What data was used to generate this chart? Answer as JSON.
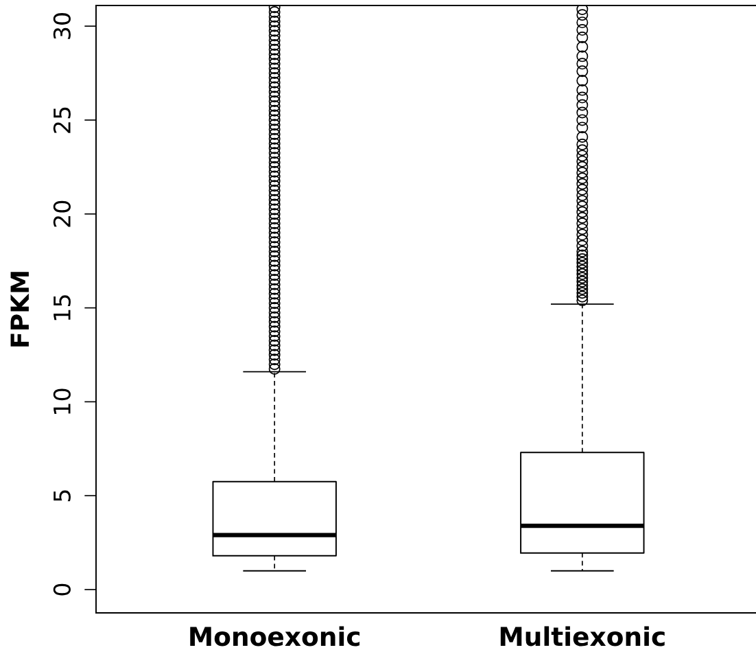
{
  "chart_data": {
    "type": "box",
    "ylabel": "FPKM",
    "categories": [
      "Monoexonic",
      "Multiexonic"
    ],
    "ylim": [
      -1.24,
      31.1
    ],
    "yticks": [
      0,
      5,
      10,
      15,
      20,
      25,
      30
    ],
    "grid": false,
    "marker": "circle",
    "boxes": [
      {
        "low": 1.0,
        "q1": 1.8,
        "median": 2.9,
        "q3": 5.75,
        "high": 11.6,
        "outliers": [
          11.75,
          12.0,
          12.25,
          12.5,
          12.75,
          13.0,
          13.25,
          13.5,
          13.75,
          14.0,
          14.25,
          14.5,
          14.75,
          15.0,
          15.25,
          15.5,
          15.75,
          16.0,
          16.25,
          16.5,
          16.75,
          17.0,
          17.25,
          17.5,
          17.75,
          18.0,
          18.25,
          18.5,
          18.75,
          19.0,
          19.25,
          19.5,
          19.75,
          20.0,
          20.25,
          20.5,
          20.75,
          21.0,
          21.25,
          21.5,
          21.75,
          22.0,
          22.25,
          22.5,
          22.75,
          23.0,
          23.25,
          23.5,
          23.75,
          24.0,
          24.25,
          24.5,
          24.75,
          25.0,
          25.25,
          25.5,
          25.75,
          26.0,
          26.25,
          26.5,
          26.75,
          27.0,
          27.25,
          27.5,
          27.75,
          28.0,
          28.25,
          28.5,
          28.75,
          29.0,
          29.25,
          29.5,
          29.75,
          30.0,
          30.25,
          30.5,
          30.75,
          31.0
        ]
      },
      {
        "low": 1.0,
        "q1": 1.95,
        "median": 3.4,
        "q3": 7.3,
        "high": 15.2,
        "outliers": [
          15.4,
          15.6,
          15.8,
          16.0,
          16.2,
          16.4,
          16.6,
          16.8,
          17.0,
          17.2,
          17.4,
          17.6,
          17.8,
          18.0,
          18.3,
          18.6,
          18.9,
          19.2,
          19.5,
          19.8,
          20.1,
          20.4,
          20.7,
          21.0,
          21.3,
          21.6,
          21.9,
          22.2,
          22.5,
          22.8,
          23.1,
          23.4,
          23.7,
          24.1,
          24.6,
          25.0,
          25.4,
          25.8,
          26.2,
          26.6,
          27.1,
          27.6,
          28.0,
          28.4,
          28.9,
          29.4,
          29.8,
          30.2,
          30.6,
          30.9
        ]
      }
    ]
  }
}
